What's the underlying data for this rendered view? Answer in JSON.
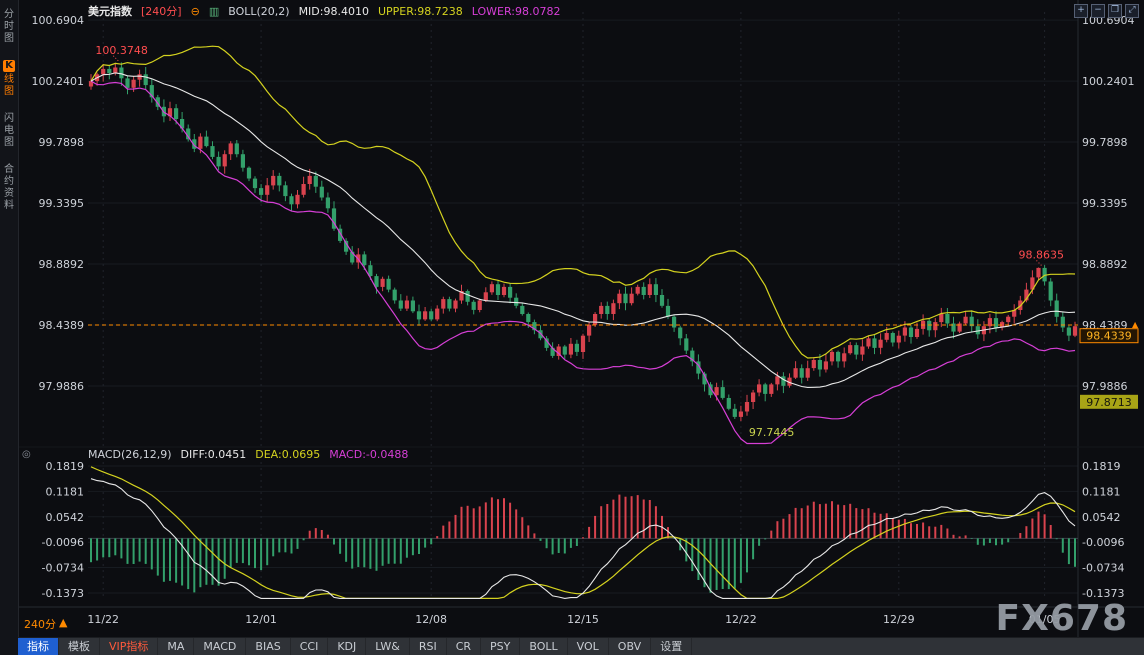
{
  "app": {
    "watermark": "FX678"
  },
  "header": {
    "symbol": "美元指数",
    "period": "[240分]",
    "collapse_glyph": "⊖",
    "style_glyph": "▥",
    "boll_label": "BOLL(20,2)",
    "mid": "MID:98.4010",
    "upper": "UPPER:98.7238",
    "lower": "LOWER:98.0782"
  },
  "macd_header": {
    "label": "MACD(26,12,9)",
    "diff": "DIFF:0.0451",
    "dea": "DEA:0.0695",
    "macd": "MACD:-0.0488"
  },
  "panel_toggle_glyph": "◎",
  "period_selector": {
    "label": "240分",
    "arrow": "▲"
  },
  "sidebar": {
    "items": [
      {
        "name": "sidebar-item-time-chart",
        "label": "分时图",
        "active": false
      },
      {
        "name": "sidebar-item-kline-chart",
        "label": "K线图",
        "active": true
      },
      {
        "name": "sidebar-item-flash-chart",
        "label": "闪电图",
        "active": false
      },
      {
        "name": "sidebar-item-contract-info",
        "label": "合约资料",
        "active": false
      }
    ]
  },
  "window_controls": [
    {
      "name": "zoom-in-icon",
      "glyph": "+"
    },
    {
      "name": "zoom-out-icon",
      "glyph": "−"
    },
    {
      "name": "restore-icon",
      "glyph": "❐"
    },
    {
      "name": "fullscreen-icon",
      "glyph": "⤢"
    }
  ],
  "toolbar": {
    "tabs": [
      {
        "name": "toolbar-tab-indicators",
        "label": "指标",
        "style": "active"
      },
      {
        "name": "toolbar-tab-templates",
        "label": "模板",
        "style": "normal"
      },
      {
        "name": "toolbar-tab-vip-indicators",
        "label": "VIP指标",
        "style": "vip"
      }
    ],
    "indicators": [
      "MA",
      "MACD",
      "BIAS",
      "CCI",
      "KDJ",
      "LW&",
      "RSI",
      "CR",
      "PSY",
      "BOLL",
      "VOL",
      "OBV"
    ],
    "settings_label": "设置"
  },
  "colors": {
    "up": "#d9434e",
    "down": "#33a06b",
    "boll_upper": "#d4d21f",
    "boll_mid": "#e8e8e8",
    "boll_lower": "#d63fd6",
    "dif_line": "#e8e8e8",
    "dea_line": "#d4d21f",
    "hist_pos": "#d9434e",
    "hist_neg": "#33a06b",
    "accent_orange": "#ff8a00",
    "annotation_red": "#ff4d4f",
    "annotation_green": "#c9d34f",
    "axis_text": "#cfd3da"
  },
  "chart_data": {
    "type": "candlestick",
    "title": "美元指数 240分 K线 BOLL(20,2) + MACD(26,12,9)",
    "panels": [
      {
        "name": "price",
        "indicator": "BOLL(20,2)",
        "y_ticks": [
          100.6904,
          100.2401,
          99.7898,
          99.3395,
          98.8892,
          98.4389,
          97.9886
        ],
        "ylim": [
          97.56,
          100.75
        ]
      },
      {
        "name": "macd",
        "indicator": "MACD(26,12,9)",
        "y_ticks": [
          0.1819,
          0.1181,
          0.0542,
          -0.0096,
          -0.0734,
          -0.1373
        ],
        "ylim": [
          -0.155,
          0.192
        ]
      }
    ],
    "x_ticks": [
      {
        "label": "11/22",
        "i": 2
      },
      {
        "label": "12/01",
        "i": 28
      },
      {
        "label": "12/08",
        "i": 56
      },
      {
        "label": "12/15",
        "i": 81
      },
      {
        "label": "12/22",
        "i": 107
      },
      {
        "label": "12/29",
        "i": 133
      },
      {
        "label": "01/05",
        "i": 157
      }
    ],
    "first_open": 100.2,
    "closes": [
      100.24,
      100.29,
      100.33,
      100.3,
      100.34,
      100.26,
      100.19,
      100.25,
      100.29,
      100.21,
      100.12,
      100.05,
      99.98,
      100.04,
      99.96,
      99.89,
      99.81,
      99.74,
      99.83,
      99.76,
      99.68,
      99.61,
      99.7,
      99.78,
      99.7,
      99.6,
      99.52,
      99.45,
      99.4,
      99.47,
      99.54,
      99.47,
      99.39,
      99.33,
      99.4,
      99.48,
      99.54,
      99.46,
      99.38,
      99.3,
      99.15,
      99.06,
      98.98,
      98.9,
      98.96,
      98.88,
      98.8,
      98.72,
      98.78,
      98.7,
      98.62,
      98.56,
      98.62,
      98.54,
      98.48,
      98.54,
      98.48,
      98.56,
      98.63,
      98.56,
      98.62,
      98.69,
      98.61,
      98.55,
      98.62,
      98.68,
      98.74,
      98.66,
      98.72,
      98.64,
      98.58,
      98.52,
      98.46,
      98.4,
      98.34,
      98.27,
      98.21,
      98.28,
      98.22,
      98.3,
      98.24,
      98.36,
      98.44,
      98.52,
      98.58,
      98.52,
      98.6,
      98.67,
      98.6,
      98.67,
      98.72,
      98.66,
      98.74,
      98.66,
      98.58,
      98.5,
      98.42,
      98.34,
      98.25,
      98.17,
      98.08,
      98.0,
      97.92,
      97.98,
      97.9,
      97.82,
      97.76,
      97.8,
      97.87,
      97.94,
      98.0,
      97.93,
      98.0,
      98.06,
      97.99,
      98.05,
      98.12,
      98.05,
      98.12,
      98.18,
      98.11,
      98.17,
      98.24,
      98.17,
      98.23,
      98.29,
      98.22,
      98.28,
      98.34,
      98.27,
      98.33,
      98.38,
      98.31,
      98.36,
      98.42,
      98.35,
      98.41,
      98.47,
      98.4,
      98.46,
      98.52,
      98.45,
      98.39,
      98.45,
      98.5,
      98.43,
      98.37,
      98.43,
      98.49,
      98.42,
      98.46,
      98.5,
      98.55,
      98.62,
      98.7,
      98.79,
      98.86,
      98.76,
      98.62,
      98.5,
      98.42,
      98.36,
      98.43
    ],
    "extremes": {
      "high_i": 4,
      "high": 100.3748,
      "low_i": 106,
      "low": 97.7445,
      "late_high_i": 156,
      "late_high": 98.8635
    },
    "dashed_line": 98.4389,
    "current_price": 98.4339,
    "price_badges": [
      {
        "name": "last-price-badge",
        "value": 98.4339,
        "style": "outline-orange"
      },
      {
        "name": "band-price-badge",
        "value": 97.8713,
        "style": "solid-olive"
      }
    ],
    "annotations": [
      {
        "text": "100.3748",
        "color": "#ff4d4f",
        "i": 4,
        "value": 100.3748,
        "pos": "above-left"
      },
      {
        "text": "98.8635",
        "color": "#ff4d4f",
        "i": 156,
        "value": 98.8635,
        "pos": "above-left"
      },
      {
        "text": "97.7445",
        "color": "#c9d34f",
        "i": 106,
        "value": 97.7445,
        "pos": "below-right"
      }
    ],
    "boll": {
      "period": 20,
      "mult": 2
    },
    "macd": {
      "fast": 12,
      "slow": 26,
      "signal": 9
    }
  }
}
